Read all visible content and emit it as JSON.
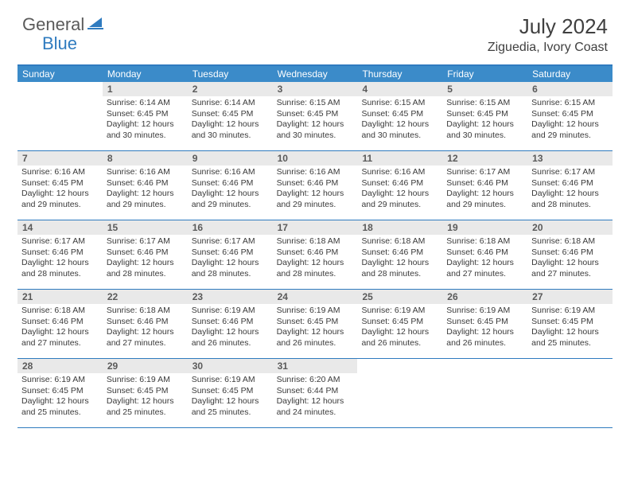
{
  "logo": {
    "general": "General",
    "blue": "Blue"
  },
  "title": "July 2024",
  "location": "Ziguedia, Ivory Coast",
  "colors": {
    "header_bg": "#3b8bc9",
    "header_border": "#2f7bbf",
    "daynum_bg": "#e9e9e9",
    "text": "#3a3a3a",
    "logo_gray": "#5a5a5a",
    "logo_blue": "#2f7bbf"
  },
  "day_headers": [
    "Sunday",
    "Monday",
    "Tuesday",
    "Wednesday",
    "Thursday",
    "Friday",
    "Saturday"
  ],
  "weeks": [
    [
      {
        "num": "",
        "sunrise": "",
        "sunset": "",
        "daylight1": "",
        "daylight2": ""
      },
      {
        "num": "1",
        "sunrise": "Sunrise: 6:14 AM",
        "sunset": "Sunset: 6:45 PM",
        "daylight1": "Daylight: 12 hours",
        "daylight2": "and 30 minutes."
      },
      {
        "num": "2",
        "sunrise": "Sunrise: 6:14 AM",
        "sunset": "Sunset: 6:45 PM",
        "daylight1": "Daylight: 12 hours",
        "daylight2": "and 30 minutes."
      },
      {
        "num": "3",
        "sunrise": "Sunrise: 6:15 AM",
        "sunset": "Sunset: 6:45 PM",
        "daylight1": "Daylight: 12 hours",
        "daylight2": "and 30 minutes."
      },
      {
        "num": "4",
        "sunrise": "Sunrise: 6:15 AM",
        "sunset": "Sunset: 6:45 PM",
        "daylight1": "Daylight: 12 hours",
        "daylight2": "and 30 minutes."
      },
      {
        "num": "5",
        "sunrise": "Sunrise: 6:15 AM",
        "sunset": "Sunset: 6:45 PM",
        "daylight1": "Daylight: 12 hours",
        "daylight2": "and 30 minutes."
      },
      {
        "num": "6",
        "sunrise": "Sunrise: 6:15 AM",
        "sunset": "Sunset: 6:45 PM",
        "daylight1": "Daylight: 12 hours",
        "daylight2": "and 29 minutes."
      }
    ],
    [
      {
        "num": "7",
        "sunrise": "Sunrise: 6:16 AM",
        "sunset": "Sunset: 6:45 PM",
        "daylight1": "Daylight: 12 hours",
        "daylight2": "and 29 minutes."
      },
      {
        "num": "8",
        "sunrise": "Sunrise: 6:16 AM",
        "sunset": "Sunset: 6:46 PM",
        "daylight1": "Daylight: 12 hours",
        "daylight2": "and 29 minutes."
      },
      {
        "num": "9",
        "sunrise": "Sunrise: 6:16 AM",
        "sunset": "Sunset: 6:46 PM",
        "daylight1": "Daylight: 12 hours",
        "daylight2": "and 29 minutes."
      },
      {
        "num": "10",
        "sunrise": "Sunrise: 6:16 AM",
        "sunset": "Sunset: 6:46 PM",
        "daylight1": "Daylight: 12 hours",
        "daylight2": "and 29 minutes."
      },
      {
        "num": "11",
        "sunrise": "Sunrise: 6:16 AM",
        "sunset": "Sunset: 6:46 PM",
        "daylight1": "Daylight: 12 hours",
        "daylight2": "and 29 minutes."
      },
      {
        "num": "12",
        "sunrise": "Sunrise: 6:17 AM",
        "sunset": "Sunset: 6:46 PM",
        "daylight1": "Daylight: 12 hours",
        "daylight2": "and 29 minutes."
      },
      {
        "num": "13",
        "sunrise": "Sunrise: 6:17 AM",
        "sunset": "Sunset: 6:46 PM",
        "daylight1": "Daylight: 12 hours",
        "daylight2": "and 28 minutes."
      }
    ],
    [
      {
        "num": "14",
        "sunrise": "Sunrise: 6:17 AM",
        "sunset": "Sunset: 6:46 PM",
        "daylight1": "Daylight: 12 hours",
        "daylight2": "and 28 minutes."
      },
      {
        "num": "15",
        "sunrise": "Sunrise: 6:17 AM",
        "sunset": "Sunset: 6:46 PM",
        "daylight1": "Daylight: 12 hours",
        "daylight2": "and 28 minutes."
      },
      {
        "num": "16",
        "sunrise": "Sunrise: 6:17 AM",
        "sunset": "Sunset: 6:46 PM",
        "daylight1": "Daylight: 12 hours",
        "daylight2": "and 28 minutes."
      },
      {
        "num": "17",
        "sunrise": "Sunrise: 6:18 AM",
        "sunset": "Sunset: 6:46 PM",
        "daylight1": "Daylight: 12 hours",
        "daylight2": "and 28 minutes."
      },
      {
        "num": "18",
        "sunrise": "Sunrise: 6:18 AM",
        "sunset": "Sunset: 6:46 PM",
        "daylight1": "Daylight: 12 hours",
        "daylight2": "and 28 minutes."
      },
      {
        "num": "19",
        "sunrise": "Sunrise: 6:18 AM",
        "sunset": "Sunset: 6:46 PM",
        "daylight1": "Daylight: 12 hours",
        "daylight2": "and 27 minutes."
      },
      {
        "num": "20",
        "sunrise": "Sunrise: 6:18 AM",
        "sunset": "Sunset: 6:46 PM",
        "daylight1": "Daylight: 12 hours",
        "daylight2": "and 27 minutes."
      }
    ],
    [
      {
        "num": "21",
        "sunrise": "Sunrise: 6:18 AM",
        "sunset": "Sunset: 6:46 PM",
        "daylight1": "Daylight: 12 hours",
        "daylight2": "and 27 minutes."
      },
      {
        "num": "22",
        "sunrise": "Sunrise: 6:18 AM",
        "sunset": "Sunset: 6:46 PM",
        "daylight1": "Daylight: 12 hours",
        "daylight2": "and 27 minutes."
      },
      {
        "num": "23",
        "sunrise": "Sunrise: 6:19 AM",
        "sunset": "Sunset: 6:46 PM",
        "daylight1": "Daylight: 12 hours",
        "daylight2": "and 26 minutes."
      },
      {
        "num": "24",
        "sunrise": "Sunrise: 6:19 AM",
        "sunset": "Sunset: 6:45 PM",
        "daylight1": "Daylight: 12 hours",
        "daylight2": "and 26 minutes."
      },
      {
        "num": "25",
        "sunrise": "Sunrise: 6:19 AM",
        "sunset": "Sunset: 6:45 PM",
        "daylight1": "Daylight: 12 hours",
        "daylight2": "and 26 minutes."
      },
      {
        "num": "26",
        "sunrise": "Sunrise: 6:19 AM",
        "sunset": "Sunset: 6:45 PM",
        "daylight1": "Daylight: 12 hours",
        "daylight2": "and 26 minutes."
      },
      {
        "num": "27",
        "sunrise": "Sunrise: 6:19 AM",
        "sunset": "Sunset: 6:45 PM",
        "daylight1": "Daylight: 12 hours",
        "daylight2": "and 25 minutes."
      }
    ],
    [
      {
        "num": "28",
        "sunrise": "Sunrise: 6:19 AM",
        "sunset": "Sunset: 6:45 PM",
        "daylight1": "Daylight: 12 hours",
        "daylight2": "and 25 minutes."
      },
      {
        "num": "29",
        "sunrise": "Sunrise: 6:19 AM",
        "sunset": "Sunset: 6:45 PM",
        "daylight1": "Daylight: 12 hours",
        "daylight2": "and 25 minutes."
      },
      {
        "num": "30",
        "sunrise": "Sunrise: 6:19 AM",
        "sunset": "Sunset: 6:45 PM",
        "daylight1": "Daylight: 12 hours",
        "daylight2": "and 25 minutes."
      },
      {
        "num": "31",
        "sunrise": "Sunrise: 6:20 AM",
        "sunset": "Sunset: 6:44 PM",
        "daylight1": "Daylight: 12 hours",
        "daylight2": "and 24 minutes."
      },
      {
        "num": "",
        "sunrise": "",
        "sunset": "",
        "daylight1": "",
        "daylight2": ""
      },
      {
        "num": "",
        "sunrise": "",
        "sunset": "",
        "daylight1": "",
        "daylight2": ""
      },
      {
        "num": "",
        "sunrise": "",
        "sunset": "",
        "daylight1": "",
        "daylight2": ""
      }
    ]
  ]
}
